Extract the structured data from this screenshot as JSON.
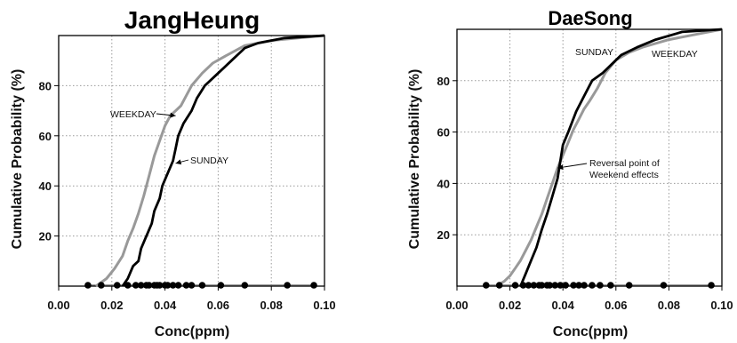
{
  "chart_data": [
    {
      "type": "line",
      "title": "JangHeung",
      "xlabel": "Conc(ppm)",
      "ylabel": "Cumulative Probability (%)",
      "xlim": [
        0,
        0.1
      ],
      "ylim": [
        0,
        100
      ],
      "x_ticks": [
        "0.00",
        "0.02",
        "0.04",
        "0.06",
        "0.08",
        "0.10"
      ],
      "y_ticks": [
        "20",
        "40",
        "60",
        "80"
      ],
      "grid": true,
      "series": [
        {
          "name": "WEEKDAY",
          "color": "#999999",
          "x": [
            0.014,
            0.018,
            0.021,
            0.024,
            0.026,
            0.028,
            0.03,
            0.032,
            0.034,
            0.036,
            0.038,
            0.04,
            0.042,
            0.044,
            0.046,
            0.048,
            0.05,
            0.054,
            0.058,
            0.063,
            0.07,
            0.08,
            0.09,
            0.1
          ],
          "y": [
            0,
            3,
            7,
            12,
            18,
            23,
            29,
            36,
            44,
            52,
            58,
            64,
            68,
            70,
            72,
            76,
            80,
            85,
            89,
            92,
            96,
            98,
            99,
            100
          ]
        },
        {
          "name": "SUNDAY",
          "color": "#000000",
          "x": [
            0.024,
            0.026,
            0.028,
            0.03,
            0.031,
            0.033,
            0.035,
            0.036,
            0.038,
            0.039,
            0.041,
            0.043,
            0.044,
            0.045,
            0.047,
            0.05,
            0.052,
            0.055,
            0.06,
            0.065,
            0.07,
            0.075,
            0.085,
            0.1
          ],
          "y": [
            0,
            3,
            8,
            10,
            15,
            20,
            25,
            30,
            35,
            40,
            45,
            50,
            55,
            60,
            65,
            70,
            75,
            80,
            85,
            90,
            95,
            97,
            99,
            100
          ]
        }
      ],
      "scatter_points": [
        0.011,
        0.016,
        0.022,
        0.026,
        0.029,
        0.031,
        0.033,
        0.034,
        0.036,
        0.037,
        0.038,
        0.04,
        0.041,
        0.043,
        0.045,
        0.048,
        0.05,
        0.054,
        0.061,
        0.07,
        0.086,
        0.096
      ],
      "annotations": [
        {
          "text": "WEEKDAY",
          "series": "WEEKDAY",
          "at_x": 0.044,
          "at_y": 68
        },
        {
          "text": "SUNDAY",
          "series": "SUNDAY",
          "at_x": 0.044,
          "at_y": 49
        }
      ]
    },
    {
      "type": "line",
      "title": "DaeSong",
      "xlabel": "Conc(ppm)",
      "ylabel": "Cumulative Probability (%)",
      "xlim": [
        0,
        0.1
      ],
      "ylim": [
        0,
        100
      ],
      "x_ticks": [
        "0.00",
        "0.02",
        "0.04",
        "0.06",
        "0.08",
        "0.10"
      ],
      "y_ticks": [
        "20",
        "40",
        "60",
        "80"
      ],
      "grid": true,
      "series": [
        {
          "name": "WEEKDAY",
          "color": "#999999",
          "x": [
            0.015,
            0.018,
            0.02,
            0.022,
            0.024,
            0.026,
            0.028,
            0.03,
            0.032,
            0.034,
            0.036,
            0.038,
            0.04,
            0.042,
            0.044,
            0.046,
            0.048,
            0.05,
            0.053,
            0.056,
            0.06,
            0.065,
            0.07,
            0.08,
            0.09,
            0.1
          ],
          "y": [
            0,
            2,
            4,
            7,
            10,
            14,
            18,
            23,
            28,
            34,
            40,
            46,
            51,
            56,
            61,
            65,
            69,
            72,
            77,
            83,
            88,
            91,
            93,
            96,
            98,
            100
          ]
        },
        {
          "name": "SUNDAY",
          "color": "#000000",
          "x": [
            0.024,
            0.026,
            0.028,
            0.03,
            0.032,
            0.034,
            0.036,
            0.038,
            0.04,
            0.042,
            0.045,
            0.048,
            0.051,
            0.055,
            0.058,
            0.062,
            0.068,
            0.075,
            0.085,
            0.1
          ],
          "y": [
            0,
            5,
            10,
            15,
            22,
            28,
            35,
            42,
            55,
            60,
            68,
            74,
            80,
            83,
            86,
            90,
            93,
            96,
            99,
            100
          ]
        }
      ],
      "scatter_points": [
        0.011,
        0.016,
        0.022,
        0.025,
        0.027,
        0.029,
        0.031,
        0.032,
        0.034,
        0.035,
        0.037,
        0.039,
        0.041,
        0.044,
        0.046,
        0.048,
        0.051,
        0.054,
        0.058,
        0.065,
        0.078,
        0.096
      ],
      "annotations": [
        {
          "text": "SUNDAY",
          "series": "SUNDAY",
          "at_x": 0.062,
          "at_y": 90
        },
        {
          "text": "WEEKDAY",
          "series": "WEEKDAY",
          "at_x": 0.07,
          "at_y": 93
        },
        {
          "text": "Reversal point of",
          "text2": "Weekend effects",
          "at_x": 0.038,
          "at_y": 46
        }
      ]
    }
  ]
}
